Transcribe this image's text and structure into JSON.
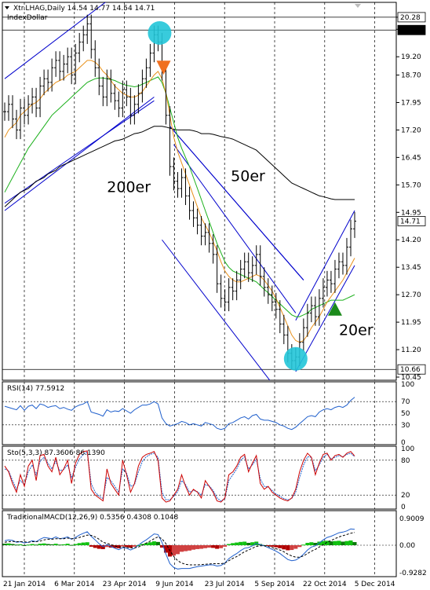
{
  "header": {
    "symbol_line": "Xtr.LHAG,Daily  14.54 14.77 14.54 14.71",
    "indicator": "IndexDollar"
  },
  "colors": {
    "background": "#ffffff",
    "price": "#000000",
    "ma20": "#e8901a",
    "ma50": "#1bb01b",
    "ma200": "#000000",
    "channel": "#0000cc",
    "circle": "#22c5d8",
    "sell_marker": "#f07020",
    "buy_marker": "#1b8a1b",
    "stoch_k": "#cc0000",
    "stoch_d": "#1f5fcc",
    "rsi": "#1f5fcc"
  },
  "chart_data": {
    "type": "line",
    "x_ticks": [
      "21 Jan 2014",
      "6 Mar 2014",
      "23 Apr 2014",
      "9 Jun 2014",
      "23 Jul 2014",
      "5 Sep 2014",
      "22 Oct 2014",
      "5 Dec 2014"
    ],
    "main": {
      "ylim": [
        10.45,
        20.6
      ],
      "y_ticks": [
        "20.28",
        "19.95",
        "19.20",
        "18.70",
        "17.95",
        "17.20",
        "16.45",
        "15.70",
        "14.95",
        "14.20",
        "13.45",
        "12.70",
        "11.95",
        "11.20",
        "10.45"
      ],
      "price_tags": [
        {
          "value": "20.28",
          "style": "plain"
        },
        {
          "value": "19.93",
          "style": "dark"
        },
        {
          "value": "14.71",
          "style": "plain"
        },
        {
          "value": "10.66",
          "style": "plain"
        }
      ],
      "annotations": [
        {
          "text": "200er",
          "x": 52,
          "y": 15.5
        },
        {
          "text": "50er",
          "x": 115,
          "y": 15.8
        },
        {
          "text": "20er",
          "x": 170,
          "y": 11.6
        }
      ],
      "close": [
        17.7,
        17.9,
        17.5,
        17.2,
        17.8,
        17.6,
        17.9,
        18.1,
        17.8,
        18.4,
        18.6,
        18.5,
        18.9,
        19.1,
        18.8,
        19.0,
        19.2,
        18.7,
        19.3,
        19.6,
        19.8,
        20.1,
        19.4,
        18.9,
        18.4,
        18.1,
        18.6,
        18.2,
        18.0,
        17.8,
        18.3,
        18.1,
        17.6,
        17.9,
        18.2,
        18.6,
        18.9,
        19.3,
        19.8,
        19.6,
        18.8,
        17.6,
        16.2,
        15.8,
        15.6,
        15.9,
        15.4,
        15.0,
        14.8,
        14.6,
        14.3,
        14.4,
        14.1,
        13.8,
        13.0,
        12.6,
        12.5,
        12.9,
        12.8,
        13.1,
        13.4,
        13.6,
        13.3,
        13.5,
        13.8,
        13.2,
        12.9,
        12.7,
        12.5,
        12.3,
        11.9,
        11.6,
        11.1,
        10.9,
        11.0,
        11.4,
        11.8,
        12.2,
        12.4,
        12.1,
        12.6,
        12.9,
        13.1,
        13.0,
        13.4,
        13.6,
        13.5,
        14.0,
        14.5,
        14.71
      ],
      "ma20": [
        17.0,
        17.2,
        17.3,
        17.4,
        17.6,
        17.7,
        17.8,
        17.9,
        17.95,
        18.05,
        18.2,
        18.3,
        18.4,
        18.5,
        18.55,
        18.6,
        18.7,
        18.75,
        18.8,
        18.9,
        19.0,
        19.1,
        19.1,
        19.05,
        18.95,
        18.8,
        18.7,
        18.55,
        18.4,
        18.3,
        18.2,
        18.15,
        18.1,
        18.1,
        18.15,
        18.25,
        18.4,
        18.55,
        18.7,
        18.8,
        18.6,
        18.2,
        17.6,
        17.0,
        16.6,
        16.3,
        16.0,
        15.7,
        15.4,
        15.1,
        14.8,
        14.6,
        14.4,
        14.15,
        13.9,
        13.6,
        13.35,
        13.2,
        13.1,
        13.05,
        13.05,
        13.1,
        13.15,
        13.2,
        13.25,
        13.2,
        13.1,
        12.95,
        12.8,
        12.6,
        12.35,
        12.1,
        11.85,
        11.6,
        11.45,
        11.4,
        11.45,
        11.6,
        11.8,
        11.95,
        12.1,
        12.3,
        12.5,
        12.65,
        12.8,
        12.95,
        13.1,
        13.3,
        13.5,
        13.7
      ],
      "ma50": [
        15.5,
        15.7,
        15.9,
        16.1,
        16.3,
        16.5,
        16.7,
        16.85,
        17.0,
        17.15,
        17.3,
        17.45,
        17.6,
        17.7,
        17.8,
        17.9,
        18.0,
        18.1,
        18.2,
        18.3,
        18.4,
        18.5,
        18.55,
        18.6,
        18.62,
        18.62,
        18.6,
        18.58,
        18.55,
        18.5,
        18.45,
        18.42,
        18.4,
        18.38,
        18.4,
        18.45,
        18.5,
        18.55,
        18.6,
        18.65,
        18.5,
        18.2,
        17.8,
        17.4,
        17.0,
        16.7,
        16.45,
        16.2,
        15.9,
        15.6,
        15.3,
        15.0,
        14.7,
        14.4,
        14.1,
        13.85,
        13.6,
        13.45,
        13.35,
        13.3,
        13.25,
        13.2,
        13.15,
        13.1,
        13.05,
        12.95,
        12.85,
        12.75,
        12.65,
        12.55,
        12.45,
        12.35,
        12.25,
        12.15,
        12.1,
        12.1,
        12.15,
        12.2,
        12.3,
        12.35,
        12.4,
        12.45,
        12.5,
        12.55,
        12.55,
        12.55,
        12.55,
        12.6,
        12.65,
        12.7
      ],
      "ma200": [
        15.1,
        15.2,
        15.3,
        15.4,
        15.5,
        15.55,
        15.6,
        15.7,
        15.8,
        15.85,
        15.9,
        16.0,
        16.05,
        16.1,
        16.2,
        16.25,
        16.3,
        16.35,
        16.4,
        16.45,
        16.5,
        16.55,
        16.6,
        16.65,
        16.7,
        16.75,
        16.8,
        16.85,
        16.9,
        16.92,
        16.95,
        17.0,
        17.05,
        17.1,
        17.12,
        17.15,
        17.2,
        17.25,
        17.3,
        17.3,
        17.3,
        17.28,
        17.25,
        17.22,
        17.2,
        17.2,
        17.2,
        17.2,
        17.18,
        17.15,
        17.1,
        17.1,
        17.1,
        17.08,
        17.05,
        17.02,
        17.0,
        16.98,
        16.95,
        16.9,
        16.85,
        16.8,
        16.75,
        16.7,
        16.65,
        16.55,
        16.45,
        16.35,
        16.25,
        16.15,
        16.05,
        15.95,
        15.85,
        15.75,
        15.7,
        15.65,
        15.6,
        15.55,
        15.5,
        15.45,
        15.4,
        15.38,
        15.35,
        15.32,
        15.3,
        15.3,
        15.3,
        15.3,
        15.3,
        15.3
      ]
    },
    "rsi": {
      "label": "RSI(14) 77.5912",
      "ylim": [
        0,
        100
      ],
      "ticks": [
        "100",
        "70",
        "50",
        "30",
        "0"
      ],
      "values": [
        62,
        60,
        58,
        56,
        63,
        55,
        62,
        64,
        58,
        66,
        64,
        60,
        62,
        63,
        58,
        60,
        57,
        55,
        61,
        64,
        66,
        70,
        52,
        50,
        48,
        45,
        56,
        52,
        54,
        53,
        58,
        54,
        50,
        56,
        60,
        64,
        64,
        66,
        70,
        66,
        42,
        32,
        28,
        30,
        32,
        36,
        34,
        30,
        32,
        30,
        28,
        34,
        32,
        30,
        24,
        22,
        24,
        32,
        34,
        38,
        42,
        44,
        40,
        46,
        48,
        40,
        38,
        38,
        36,
        34,
        30,
        28,
        24,
        22,
        26,
        32,
        38,
        44,
        46,
        44,
        52,
        56,
        58,
        56,
        60,
        62,
        60,
        64,
        72,
        77.59
      ]
    },
    "stoch": {
      "label": "Sto(5,3,3) 87.3606 86.1390",
      "ylim": [
        0,
        100
      ],
      "ticks": [
        "100",
        "80",
        "20",
        "0"
      ],
      "k": [
        70,
        60,
        40,
        25,
        55,
        35,
        70,
        80,
        45,
        88,
        90,
        70,
        60,
        85,
        55,
        65,
        80,
        40,
        75,
        90,
        95,
        96,
        30,
        20,
        15,
        10,
        65,
        40,
        30,
        20,
        80,
        55,
        25,
        40,
        70,
        85,
        90,
        92,
        95,
        80,
        15,
        8,
        10,
        20,
        30,
        55,
        35,
        20,
        30,
        25,
        15,
        45,
        35,
        25,
        10,
        8,
        15,
        55,
        60,
        70,
        85,
        90,
        60,
        75,
        88,
        40,
        30,
        35,
        25,
        20,
        15,
        12,
        10,
        15,
        30,
        60,
        80,
        92,
        85,
        55,
        75,
        90,
        92,
        80,
        88,
        90,
        85,
        92,
        95,
        87.36
      ],
      "d": [
        65,
        62,
        45,
        30,
        45,
        38,
        60,
        72,
        55,
        78,
        85,
        75,
        65,
        78,
        62,
        64,
        72,
        50,
        68,
        82,
        90,
        94,
        40,
        25,
        18,
        14,
        50,
        45,
        35,
        25,
        65,
        58,
        35,
        38,
        60,
        78,
        86,
        90,
        92,
        85,
        25,
        12,
        12,
        18,
        26,
        45,
        38,
        25,
        28,
        26,
        20,
        38,
        36,
        28,
        15,
        10,
        14,
        45,
        55,
        65,
        80,
        86,
        65,
        72,
        82,
        48,
        35,
        34,
        28,
        22,
        18,
        14,
        12,
        14,
        25,
        50,
        72,
        86,
        85,
        62,
        72,
        85,
        90,
        82,
        85,
        88,
        86,
        90,
        92,
        86.14
      ]
    },
    "macd": {
      "label": "TraditionalMACD(12,26,9) 0.5356 0.4308 0.1048",
      "ylim": [
        -0.95,
        0.95
      ],
      "ticks": [
        "0.9009",
        "0.00",
        "-0.9282"
      ],
      "hist": [
        0.05,
        0.06,
        0.04,
        0.02,
        0.03,
        0.0,
        0.02,
        0.04,
        0.02,
        0.05,
        0.06,
        0.04,
        0.03,
        0.05,
        0.02,
        0.03,
        0.05,
        0.01,
        0.04,
        0.07,
        0.09,
        0.1,
        -0.05,
        -0.09,
        -0.12,
        -0.13,
        -0.06,
        -0.08,
        -0.09,
        -0.1,
        -0.04,
        -0.06,
        -0.08,
        -0.05,
        0.0,
        0.04,
        0.07,
        0.1,
        0.13,
        0.11,
        -0.08,
        -0.25,
        -0.38,
        -0.35,
        -0.3,
        -0.22,
        -0.2,
        -0.18,
        -0.15,
        -0.13,
        -0.12,
        -0.1,
        -0.08,
        -0.09,
        -0.12,
        -0.1,
        -0.05,
        0.04,
        0.07,
        0.09,
        0.11,
        0.12,
        0.08,
        0.1,
        0.12,
        0.04,
        0.0,
        -0.02,
        -0.05,
        -0.07,
        -0.1,
        -0.14,
        -0.17,
        -0.16,
        -0.12,
        -0.06,
        0.02,
        0.08,
        0.1,
        0.08,
        0.12,
        0.14,
        0.15,
        0.13,
        0.14,
        0.15,
        0.12,
        0.14,
        0.16,
        0.1048
      ],
      "macd": [
        0.15,
        0.18,
        0.16,
        0.1,
        0.12,
        0.08,
        0.1,
        0.15,
        0.12,
        0.2,
        0.26,
        0.24,
        0.22,
        0.28,
        0.22,
        0.24,
        0.28,
        0.2,
        0.26,
        0.34,
        0.4,
        0.45,
        0.3,
        0.18,
        0.05,
        -0.05,
        0.02,
        -0.04,
        -0.1,
        -0.15,
        -0.08,
        -0.1,
        -0.16,
        -0.1,
        0.0,
        0.1,
        0.18,
        0.28,
        0.38,
        0.36,
        0.1,
        -0.3,
        -0.62,
        -0.75,
        -0.8,
        -0.78,
        -0.78,
        -0.78,
        -0.75,
        -0.72,
        -0.7,
        -0.68,
        -0.66,
        -0.66,
        -0.7,
        -0.68,
        -0.6,
        -0.45,
        -0.36,
        -0.28,
        -0.18,
        -0.1,
        -0.08,
        -0.02,
        0.06,
        0.02,
        -0.02,
        -0.08,
        -0.14,
        -0.2,
        -0.28,
        -0.38,
        -0.48,
        -0.52,
        -0.5,
        -0.42,
        -0.3,
        -0.16,
        -0.06,
        -0.02,
        0.08,
        0.18,
        0.26,
        0.3,
        0.36,
        0.42,
        0.44,
        0.48,
        0.55,
        0.5356
      ],
      "signal": [
        0.1,
        0.12,
        0.13,
        0.12,
        0.12,
        0.11,
        0.1,
        0.12,
        0.12,
        0.14,
        0.18,
        0.2,
        0.2,
        0.22,
        0.22,
        0.22,
        0.24,
        0.22,
        0.23,
        0.26,
        0.3,
        0.34,
        0.33,
        0.28,
        0.2,
        0.1,
        0.06,
        0.02,
        -0.02,
        -0.06,
        -0.06,
        -0.07,
        -0.09,
        -0.09,
        -0.06,
        0.0,
        0.07,
        0.14,
        0.22,
        0.28,
        0.22,
        0.05,
        -0.18,
        -0.38,
        -0.52,
        -0.6,
        -0.64,
        -0.66,
        -0.66,
        -0.66,
        -0.65,
        -0.64,
        -0.63,
        -0.62,
        -0.62,
        -0.62,
        -0.6,
        -0.52,
        -0.44,
        -0.38,
        -0.3,
        -0.22,
        -0.16,
        -0.1,
        -0.04,
        -0.02,
        -0.02,
        -0.04,
        -0.08,
        -0.12,
        -0.16,
        -0.22,
        -0.3,
        -0.36,
        -0.4,
        -0.4,
        -0.36,
        -0.28,
        -0.2,
        -0.14,
        -0.06,
        0.02,
        0.1,
        0.16,
        0.22,
        0.28,
        0.32,
        0.36,
        0.4,
        0.4308
      ]
    }
  }
}
